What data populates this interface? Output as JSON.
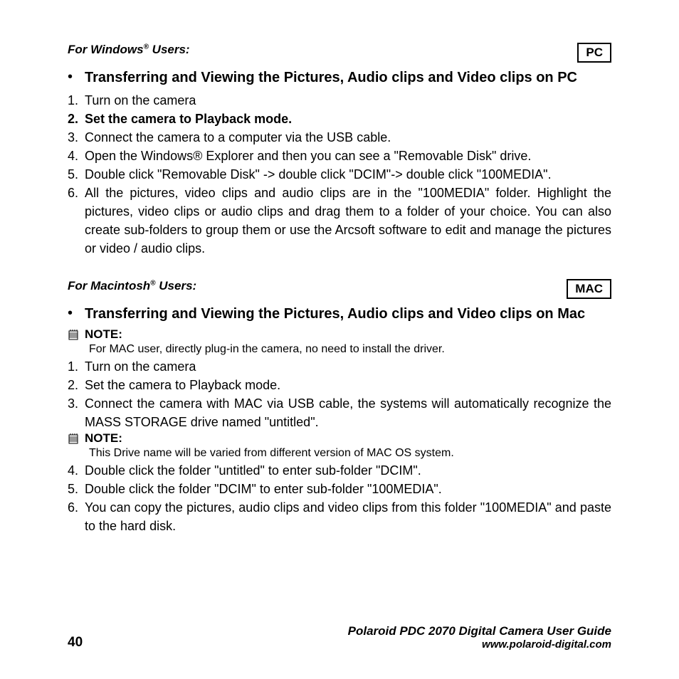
{
  "windows": {
    "os_label_pre": "For Windows",
    "os_label_post": " Users:",
    "badge": "PC",
    "title": "Transferring and Viewing the Pictures, Audio clips and Video clips on PC",
    "steps": [
      {
        "n": "1.",
        "text": "Turn on the camera",
        "bold": false
      },
      {
        "n": "2.",
        "text": "Set the camera to Playback mode.",
        "bold": true
      },
      {
        "n": "3.",
        "text": "Connect the camera to a computer via the USB cable.",
        "bold": false
      },
      {
        "n": "4.",
        "text": "Open the Windows® Explorer and then you can see a \"Removable Disk\" drive.",
        "bold": false
      },
      {
        "n": "5.",
        "text": "Double click \"Removable Disk\" -> double click \"DCIM\"-> double click \"100MEDIA\".",
        "bold": false
      },
      {
        "n": "6.",
        "text": "All the pictures, video clips and audio clips are in the \"100MEDIA\" folder. Highlight the pictures, video clips or audio clips and drag them to a folder of your choice. You can also create sub-folders to group them or use the Arcsoft software to edit and manage the pictures or video / audio clips.",
        "bold": false
      }
    ]
  },
  "mac": {
    "os_label_pre": "For Macintosh",
    "os_label_post": " Users:",
    "badge": "MAC",
    "title": "Transferring and Viewing the Pictures, Audio clips and Video clips on Mac",
    "note1_label": "NOTE:",
    "note1_text": "For MAC user, directly plug-in the camera, no need to install the driver.",
    "steps_a": [
      {
        "n": "1.",
        "text": "Turn on the camera"
      },
      {
        "n": "2.",
        "text": "Set the camera to Playback mode."
      },
      {
        "n": "3.",
        "text": "Connect the camera with MAC via USB cable, the systems will automatically recognize the MASS STORAGE drive named \"untitled\"."
      }
    ],
    "note2_label": "NOTE:",
    "note2_text": "This Drive name will be varied from different version of MAC OS system.",
    "steps_b": [
      {
        "n": "4.",
        "text": "Double click the folder \"untitled\" to enter sub-folder \"DCIM\"."
      },
      {
        "n": "5.",
        "text": "Double click the folder \"DCIM\" to enter sub-folder \"100MEDIA\"."
      },
      {
        "n": "6.",
        "text": "You can copy the pictures, audio clips and video clips from this folder \"100MEDIA\" and paste to the hard disk."
      }
    ]
  },
  "footer": {
    "page": "40",
    "guide": "Polaroid PDC 2070 Digital Camera User Guide",
    "url": "www.polaroid-digital.com"
  }
}
